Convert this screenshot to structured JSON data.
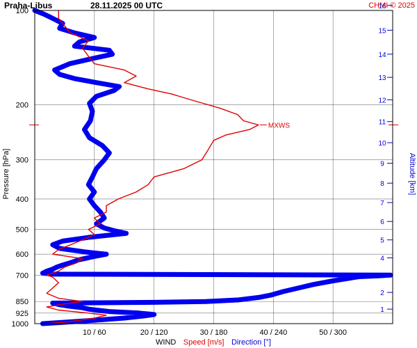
{
  "header": {
    "station": "Praha-Libus",
    "datetime": "28.11.2025 00 UTC",
    "copyright": "CHMI © 2025"
  },
  "chart_data": {
    "type": "line",
    "ylabel": "Pressure [hPa]",
    "y2label": "Altitude [km]",
    "xlabel_parts": [
      "WIND",
      "Speed [m/s]",
      "Direction [°]"
    ],
    "pressure_ticks": [
      100,
      200,
      300,
      400,
      500,
      600,
      700,
      850,
      925,
      1000
    ],
    "altitude_ticks": [
      1,
      2,
      3,
      4,
      5,
      6,
      7,
      8,
      9,
      10,
      11,
      12,
      13,
      14,
      15,
      16
    ],
    "altitude_labels": [
      "1",
      "2",
      "3",
      "4",
      "5",
      "6",
      "7",
      "8",
      "9",
      "10",
      "11",
      "12",
      "13",
      "14",
      "15",
      "16"
    ],
    "x_ticks": [
      {
        "speed": 10,
        "dir": 60,
        "label": "10 / 60"
      },
      {
        "speed": 20,
        "dir": 120,
        "label": "20 / 120"
      },
      {
        "speed": 30,
        "dir": 180,
        "label": "30 / 180"
      },
      {
        "speed": 40,
        "dir": 240,
        "label": "40 / 240"
      },
      {
        "speed": 50,
        "dir": 300,
        "label": "50 / 300"
      }
    ],
    "x_range_speed": [
      0,
      60
    ],
    "x_range_dir": [
      0,
      360
    ],
    "p_range": [
      1000,
      100
    ],
    "max_wind": {
      "label": "MXWS",
      "pressure": 232,
      "speed": 37.5
    },
    "colors": {
      "speed": "#e00000",
      "direction": "#0000ee",
      "grid": "#000000"
    },
    "series": [
      {
        "name": "Speed [m/s]",
        "x_unit": "m/s",
        "points": [
          [
            1000,
            2
          ],
          [
            985,
            6
          ],
          [
            960,
            10
          ],
          [
            940,
            12
          ],
          [
            925,
            9
          ],
          [
            905,
            4
          ],
          [
            885,
            2
          ],
          [
            865,
            5
          ],
          [
            850,
            8
          ],
          [
            830,
            4
          ],
          [
            800,
            2
          ],
          [
            770,
            3
          ],
          [
            740,
            4
          ],
          [
            710,
            3
          ],
          [
            700,
            2
          ],
          [
            680,
            4
          ],
          [
            660,
            5
          ],
          [
            640,
            7
          ],
          [
            620,
            8
          ],
          [
            600,
            3
          ],
          [
            580,
            4
          ],
          [
            560,
            6
          ],
          [
            540,
            8
          ],
          [
            520,
            10
          ],
          [
            500,
            9
          ],
          [
            480,
            11
          ],
          [
            460,
            10
          ],
          [
            440,
            12
          ],
          [
            420,
            12
          ],
          [
            400,
            14
          ],
          [
            380,
            17
          ],
          [
            360,
            19
          ],
          [
            340,
            20
          ],
          [
            320,
            25
          ],
          [
            300,
            28
          ],
          [
            280,
            29
          ],
          [
            260,
            30
          ],
          [
            250,
            32
          ],
          [
            240,
            36
          ],
          [
            232,
            37.5
          ],
          [
            225,
            35
          ],
          [
            215,
            34
          ],
          [
            205,
            31
          ],
          [
            195,
            27
          ],
          [
            185,
            23
          ],
          [
            178,
            19
          ],
          [
            170,
            15
          ],
          [
            162,
            17
          ],
          [
            155,
            15
          ],
          [
            148,
            10
          ],
          [
            140,
            9
          ],
          [
            132,
            8
          ],
          [
            125,
            9
          ],
          [
            118,
            6
          ],
          [
            112,
            5
          ],
          [
            106,
            4
          ],
          [
            100,
            4
          ]
        ]
      },
      {
        "name": "Direction [°]",
        "x_unit": "deg",
        "points": [
          [
            1000,
            8
          ],
          [
            990,
            30
          ],
          [
            975,
            60
          ],
          [
            960,
            90
          ],
          [
            945,
            110
          ],
          [
            935,
            120
          ],
          [
            925,
            105
          ],
          [
            915,
            75
          ],
          [
            900,
            55
          ],
          [
            890,
            48
          ],
          [
            880,
            35
          ],
          [
            870,
            25
          ],
          [
            860,
            18
          ],
          [
            855,
            120
          ],
          [
            850,
            172
          ],
          [
            840,
            205
          ],
          [
            825,
            225
          ],
          [
            810,
            238
          ],
          [
            790,
            250
          ],
          [
            770,
            265
          ],
          [
            750,
            280
          ],
          [
            730,
            300
          ],
          [
            715,
            318
          ],
          [
            708,
            326
          ],
          [
            704,
            345
          ],
          [
            700,
            358
          ],
          [
            695,
            20
          ],
          [
            690,
            8
          ],
          [
            680,
            12
          ],
          [
            670,
            18
          ],
          [
            660,
            22
          ],
          [
            650,
            28
          ],
          [
            640,
            35
          ],
          [
            625,
            45
          ],
          [
            610,
            60
          ],
          [
            600,
            72
          ],
          [
            590,
            50
          ],
          [
            575,
            25
          ],
          [
            560,
            18
          ],
          [
            545,
            28
          ],
          [
            530,
            55
          ],
          [
            515,
            92
          ],
          [
            505,
            80
          ],
          [
            495,
            70
          ],
          [
            480,
            62
          ],
          [
            460,
            70
          ],
          [
            440,
            66
          ],
          [
            420,
            60
          ],
          [
            400,
            55
          ],
          [
            380,
            60
          ],
          [
            360,
            54
          ],
          [
            340,
            58
          ],
          [
            320,
            62
          ],
          [
            300,
            70
          ],
          [
            285,
            75
          ],
          [
            270,
            68
          ],
          [
            255,
            55
          ],
          [
            240,
            50
          ],
          [
            225,
            56
          ],
          [
            210,
            58
          ],
          [
            198,
            55
          ],
          [
            188,
            62
          ],
          [
            180,
            80
          ],
          [
            175,
            85
          ],
          [
            170,
            62
          ],
          [
            165,
            40
          ],
          [
            160,
            25
          ],
          [
            155,
            20
          ],
          [
            148,
            35
          ],
          [
            142,
            60
          ],
          [
            138,
            78
          ],
          [
            134,
            75
          ],
          [
            130,
            40
          ],
          [
            126,
            45
          ],
          [
            122,
            60
          ],
          [
            118,
            40
          ],
          [
            114,
            25
          ],
          [
            110,
            28
          ],
          [
            106,
            18
          ],
          [
            103,
            10
          ],
          [
            100,
            0
          ]
        ]
      }
    ]
  }
}
